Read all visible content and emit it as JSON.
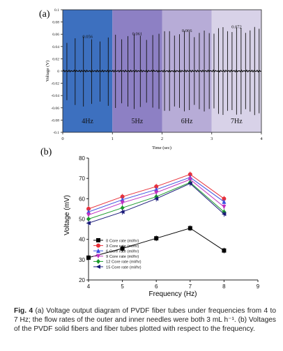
{
  "panel_a_label": "(a)",
  "panel_b_label": "(b)",
  "caption": {
    "fig_label": "Fig. 4",
    "text": "(a) Voltage output diagram of PVDF fiber tubes under frequencies from 4 to 7 Hz; the flow rates of the outer and inner needles were both 3 mL h⁻¹. (b) Voltages of the PVDF solid fibers and fiber tubes plotted with respect to the frequency."
  },
  "colors": {
    "band_4hz": "#3d70bf",
    "band_5hz": "#8d80c4",
    "band_6hz": "#b7acd7",
    "band_7hz": "#d8d2e8"
  },
  "chart_data": [
    {
      "type": "line",
      "panel": "(a)",
      "xlabel": "Time (sec)",
      "ylabel": "Voltage (V)",
      "xlim": [
        0,
        4
      ],
      "ylim": [
        -0.1,
        0.1
      ],
      "x_ticks": [
        "0",
        "1",
        "2",
        "3",
        "4"
      ],
      "y_ticks": [
        "0.1",
        "0.08",
        "0.06",
        "0.04",
        "0.02",
        "0",
        "-0.02",
        "-0.04",
        "-0.06",
        "-0.08",
        "-0.1"
      ],
      "bands": [
        {
          "label": "4Hz",
          "x_start": 0,
          "x_end": 1,
          "peak_label": "0.056",
          "peak": 0.056,
          "trough": -0.058
        },
        {
          "label": "5Hz",
          "x_start": 1,
          "x_end": 2,
          "peak_label": "0.061",
          "peak": 0.061,
          "trough": -0.062
        },
        {
          "label": "6Hz",
          "x_start": 2,
          "x_end": 3,
          "peak_label": "0.066",
          "peak": 0.066,
          "trough": -0.066
        },
        {
          "label": "7Hz",
          "x_start": 3,
          "x_end": 4,
          "peak_label": "0.072",
          "peak": 0.072,
          "trough": -0.072
        }
      ],
      "grid": false
    },
    {
      "type": "line",
      "panel": "(b)",
      "xlabel": "Frequency (Hz)",
      "ylabel": "Voltage (mV)",
      "xlim": [
        4,
        9
      ],
      "ylim": [
        20,
        80
      ],
      "x_ticks": [
        "4",
        "5",
        "6",
        "7",
        "8",
        "9"
      ],
      "y_ticks": [
        "20",
        "30",
        "40",
        "50",
        "60",
        "70",
        "80"
      ],
      "x": [
        4,
        5,
        6,
        7,
        8
      ],
      "legend_position": "bottom-left",
      "grid": false,
      "series": [
        {
          "name": "0 Core rate (ml/hr)",
          "values": [
            31,
            35.5,
            40.5,
            45.5,
            34.5
          ],
          "color": "#000000",
          "marker": "square"
        },
        {
          "name": "3 Core rate (ml/hr)",
          "values": [
            55,
            61,
            66,
            72,
            60
          ],
          "color": "#e8303a",
          "marker": "circle"
        },
        {
          "name": "6 Core rate (ml/hr)",
          "values": [
            53.5,
            59.5,
            64.5,
            70.5,
            58.5
          ],
          "color": "#3a50e0",
          "marker": "triangle-up"
        },
        {
          "name": "9 Core rate (ml/hr)",
          "values": [
            52,
            58,
            63,
            69.5,
            56
          ],
          "color": "#c030c0",
          "marker": "triangle-down"
        },
        {
          "name": "12 Core rate (ml/hr)",
          "values": [
            50,
            55.5,
            61,
            68,
            53.5
          ],
          "color": "#1a9a2a",
          "marker": "diamond"
        },
        {
          "name": "15 Core rate (ml/hr)",
          "values": [
            48,
            53.5,
            60,
            67.5,
            52.5
          ],
          "color": "#1a1a7a",
          "marker": "triangle-left"
        }
      ]
    }
  ]
}
